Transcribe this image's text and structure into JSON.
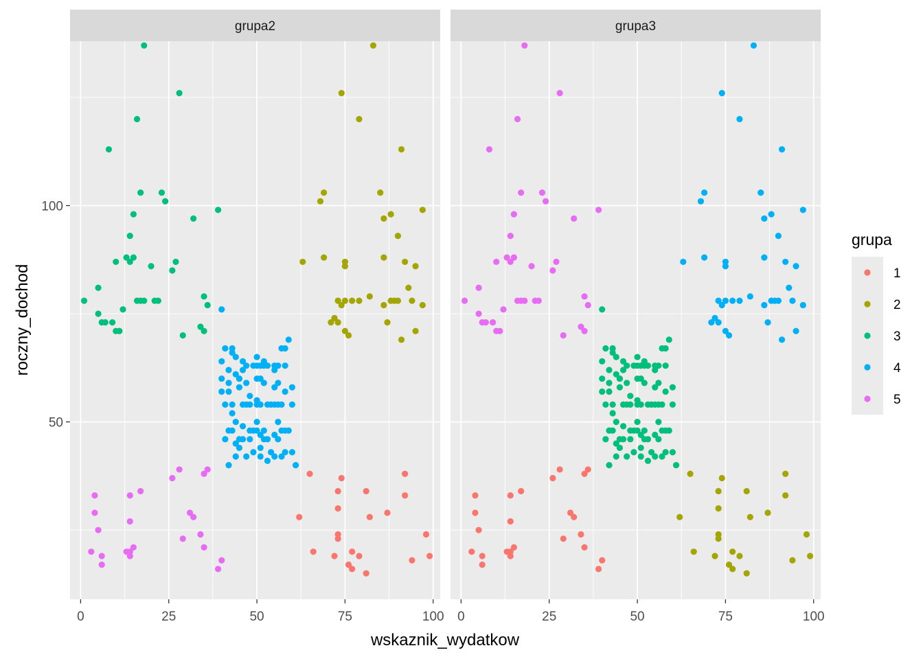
{
  "chart_data": {
    "type": "scatter",
    "xlabel": "wskaznik_wydatkow",
    "ylabel": "roczny_dochod",
    "xlim": [
      -3,
      102
    ],
    "ylim": [
      9,
      138
    ],
    "x_ticks": [
      0,
      25,
      50,
      75,
      100
    ],
    "y_ticks": [
      50,
      100
    ],
    "grid": true,
    "legend": {
      "title": "grupa",
      "position": "right",
      "entries": [
        {
          "label": "1",
          "color": "#F8766D"
        },
        {
          "label": "2",
          "color": "#A3A500"
        },
        {
          "label": "3",
          "color": "#00BF7D"
        },
        {
          "label": "4",
          "color": "#00B0F6"
        },
        {
          "label": "5",
          "color": "#E76BF3"
        }
      ]
    },
    "clusters": {
      "A": [
        [
          3,
          20
        ],
        [
          6,
          17
        ],
        [
          6,
          19
        ],
        [
          4,
          29
        ],
        [
          4,
          33
        ],
        [
          5,
          25
        ],
        [
          14,
          20
        ],
        [
          15,
          21
        ],
        [
          14,
          19
        ],
        [
          13,
          20
        ],
        [
          14,
          27
        ],
        [
          14,
          33
        ],
        [
          17,
          34
        ],
        [
          26,
          37
        ],
        [
          28,
          39
        ],
        [
          31,
          29
        ],
        [
          32,
          28
        ],
        [
          29,
          23
        ],
        [
          34,
          24
        ],
        [
          35,
          38
        ],
        [
          36,
          39
        ],
        [
          35,
          21
        ],
        [
          39,
          16
        ],
        [
          40,
          18
        ]
      ],
      "B": [
        [
          42,
          62
        ],
        [
          42,
          59
        ],
        [
          40,
          60
        ],
        [
          40,
          57
        ],
        [
          42,
          57
        ],
        [
          43,
          52
        ],
        [
          44,
          50
        ],
        [
          45,
          60
        ],
        [
          45,
          58
        ],
        [
          47,
          59
        ],
        [
          48,
          56
        ],
        [
          50,
          60
        ],
        [
          50,
          55
        ],
        [
          52,
          59
        ],
        [
          55,
          58
        ],
        [
          56,
          59
        ],
        [
          58,
          57
        ],
        [
          60,
          58
        ],
        [
          60,
          54
        ],
        [
          41,
          54
        ],
        [
          43,
          54
        ],
        [
          46,
          54
        ],
        [
          47,
          54
        ],
        [
          48,
          54
        ],
        [
          50,
          54
        ],
        [
          51,
          54
        ],
        [
          53,
          54
        ],
        [
          54,
          54
        ],
        [
          55,
          54
        ],
        [
          56,
          54
        ],
        [
          57,
          54
        ],
        [
          42,
          48
        ],
        [
          41,
          46
        ],
        [
          43,
          48
        ],
        [
          44,
          45
        ],
        [
          45,
          46
        ],
        [
          46,
          49
        ],
        [
          48,
          48
        ],
        [
          49,
          48
        ],
        [
          50,
          48
        ],
        [
          51,
          47
        ],
        [
          52,
          48
        ],
        [
          53,
          46
        ],
        [
          55,
          47
        ],
        [
          56,
          50
        ],
        [
          57,
          48
        ],
        [
          58,
          48
        ],
        [
          59,
          48
        ],
        [
          42,
          40
        ],
        [
          44,
          42
        ],
        [
          45,
          44
        ],
        [
          46,
          46
        ],
        [
          47,
          42
        ],
        [
          49,
          43
        ],
        [
          50,
          50
        ],
        [
          51,
          44
        ],
        [
          52,
          46
        ],
        [
          53,
          41
        ],
        [
          55,
          42
        ],
        [
          57,
          42
        ],
        [
          60,
          43
        ],
        [
          61,
          40
        ],
        [
          58,
          43
        ],
        [
          54,
          43
        ],
        [
          48,
          46
        ],
        [
          51,
          42
        ],
        [
          56,
          46
        ],
        [
          47,
          63
        ],
        [
          49,
          63
        ],
        [
          50,
          63
        ],
        [
          51,
          63
        ],
        [
          52,
          63
        ],
        [
          53,
          63
        ],
        [
          55,
          63
        ],
        [
          56,
          63
        ],
        [
          58,
          63
        ],
        [
          46,
          64
        ],
        [
          50,
          65
        ],
        [
          52,
          64
        ],
        [
          44,
          61
        ],
        [
          46,
          62
        ],
        [
          45,
          60
        ],
        [
          51,
          60
        ],
        [
          55,
          62
        ],
        [
          58,
          67
        ],
        [
          59,
          69
        ],
        [
          57,
          67
        ],
        [
          43,
          66
        ],
        [
          44,
          65
        ],
        [
          41,
          67
        ],
        [
          40,
          76
        ],
        [
          43,
          67
        ],
        [
          40,
          64
        ]
      ],
      "C": [
        [
          1,
          78
        ],
        [
          5,
          81
        ],
        [
          5,
          75
        ],
        [
          6,
          73
        ],
        [
          7,
          73
        ],
        [
          8,
          113
        ],
        [
          9,
          73
        ],
        [
          10,
          87
        ],
        [
          10,
          71
        ],
        [
          11,
          71
        ],
        [
          12,
          76
        ],
        [
          13,
          88
        ],
        [
          14,
          87
        ],
        [
          14,
          93
        ],
        [
          15,
          98
        ],
        [
          15,
          88
        ],
        [
          16,
          78
        ],
        [
          16,
          120
        ],
        [
          17,
          78
        ],
        [
          18,
          78
        ],
        [
          17,
          103
        ],
        [
          18,
          137
        ],
        [
          20,
          86
        ],
        [
          21,
          78
        ],
        [
          22,
          78
        ],
        [
          23,
          103
        ],
        [
          24,
          101
        ],
        [
          26,
          85
        ],
        [
          27,
          87
        ],
        [
          28,
          126
        ],
        [
          29,
          70
        ],
        [
          32,
          97
        ],
        [
          34,
          72
        ],
        [
          35,
          71
        ],
        [
          35,
          79
        ],
        [
          36,
          77
        ],
        [
          39,
          99
        ]
      ],
      "D": [
        [
          63,
          87
        ],
        [
          68,
          101
        ],
        [
          69,
          103
        ],
        [
          69,
          88
        ],
        [
          71,
          73
        ],
        [
          72,
          74
        ],
        [
          73,
          73
        ],
        [
          73,
          78
        ],
        [
          74,
          77
        ],
        [
          74,
          126
        ],
        [
          75,
          71
        ],
        [
          75,
          86
        ],
        [
          75,
          78
        ],
        [
          75,
          87
        ],
        [
          76,
          70
        ],
        [
          77,
          78
        ],
        [
          79,
          78
        ],
        [
          79,
          120
        ],
        [
          82,
          79
        ],
        [
          83,
          137
        ],
        [
          85,
          103
        ],
        [
          86,
          97
        ],
        [
          86,
          88
        ],
        [
          86,
          77
        ],
        [
          87,
          73
        ],
        [
          88,
          98
        ],
        [
          88,
          78
        ],
        [
          89,
          78
        ],
        [
          90,
          93
        ],
        [
          90,
          78
        ],
        [
          91,
          113
        ],
        [
          91,
          69
        ],
        [
          92,
          87
        ],
        [
          93,
          81
        ],
        [
          94,
          78
        ],
        [
          95,
          71
        ],
        [
          97,
          99
        ],
        [
          97,
          77
        ],
        [
          95,
          86
        ]
      ],
      "E": [
        [
          62,
          28
        ],
        [
          66,
          20
        ],
        [
          73,
          23
        ],
        [
          73,
          24
        ],
        [
          73,
          30
        ],
        [
          73,
          34
        ],
        [
          72,
          19
        ],
        [
          74,
          37
        ],
        [
          76,
          17
        ],
        [
          77,
          16
        ],
        [
          77,
          20
        ],
        [
          79,
          19
        ],
        [
          81,
          34
        ],
        [
          81,
          15
        ],
        [
          82,
          28
        ],
        [
          87,
          29
        ],
        [
          92,
          38
        ],
        [
          92,
          33
        ],
        [
          94,
          18
        ],
        [
          98,
          24
        ],
        [
          99,
          19
        ],
        [
          65,
          38
        ]
      ]
    },
    "panels": [
      {
        "title": "grupa2",
        "series": [
          {
            "group": "1",
            "cluster": "E"
          },
          {
            "group": "2",
            "cluster": "D"
          },
          {
            "group": "3",
            "cluster": "C"
          },
          {
            "group": "4",
            "cluster": "B"
          },
          {
            "group": "5",
            "cluster": "A"
          }
        ]
      },
      {
        "title": "grupa3",
        "series": [
          {
            "group": "1",
            "cluster": "A"
          },
          {
            "group": "2",
            "cluster": "E"
          },
          {
            "group": "3",
            "cluster": "B"
          },
          {
            "group": "4",
            "cluster": "D"
          },
          {
            "group": "5",
            "cluster": "C"
          }
        ]
      }
    ]
  }
}
